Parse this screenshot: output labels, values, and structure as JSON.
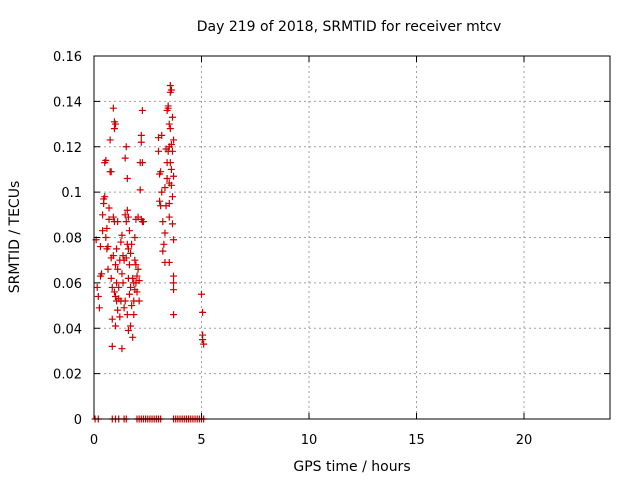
{
  "chart_data": {
    "type": "scatter",
    "title": "Day 219 of 2018, SRMTID for receiver mtcv",
    "xlabel": "GPS time / hours",
    "ylabel": "SRMTID / TECUs",
    "xlim": [
      0,
      24
    ],
    "ylim": [
      0,
      0.16
    ],
    "x_ticks": [
      0,
      5,
      10,
      15,
      20
    ],
    "x_tick_labels": [
      "0",
      "5",
      "10",
      "15",
      "20"
    ],
    "y_ticks": [
      0,
      0.02,
      0.04,
      0.06,
      0.08,
      0.1,
      0.12,
      0.14,
      0.16
    ],
    "y_tick_labels": [
      "0",
      "0.02",
      "0.04",
      "0.06",
      "0.08",
      "0.1",
      "0.12",
      "0.14",
      "0.16"
    ],
    "grid": true,
    "marker": "plus",
    "color": "#cc0000",
    "points": [
      [
        0.05,
        0.0
      ],
      [
        0.2,
        0.0
      ],
      [
        0.85,
        0.0
      ],
      [
        1.0,
        0.0
      ],
      [
        1.15,
        0.0
      ],
      [
        1.4,
        0.0
      ],
      [
        1.5,
        0.0
      ],
      [
        2.0,
        0.0
      ],
      [
        2.1,
        0.0
      ],
      [
        2.2,
        0.0
      ],
      [
        2.3,
        0.0
      ],
      [
        2.4,
        0.0
      ],
      [
        2.5,
        0.0
      ],
      [
        2.6,
        0.0
      ],
      [
        2.7,
        0.0
      ],
      [
        2.8,
        0.0
      ],
      [
        2.9,
        0.0
      ],
      [
        3.0,
        0.0
      ],
      [
        3.1,
        0.0
      ],
      [
        3.7,
        0.0
      ],
      [
        3.8,
        0.0
      ],
      [
        3.9,
        0.0
      ],
      [
        4.0,
        0.0
      ],
      [
        4.1,
        0.0
      ],
      [
        4.2,
        0.0
      ],
      [
        4.3,
        0.0
      ],
      [
        4.4,
        0.0
      ],
      [
        4.5,
        0.0
      ],
      [
        4.6,
        0.0
      ],
      [
        4.7,
        0.0
      ],
      [
        4.8,
        0.0
      ],
      [
        4.9,
        0.0
      ],
      [
        5.0,
        0.0
      ],
      [
        5.1,
        0.0
      ],
      [
        0.1,
        0.079
      ],
      [
        0.15,
        0.058
      ],
      [
        0.2,
        0.054
      ],
      [
        0.25,
        0.049
      ],
      [
        0.3,
        0.063
      ],
      [
        0.3,
        0.076
      ],
      [
        0.35,
        0.064
      ],
      [
        0.4,
        0.09
      ],
      [
        0.4,
        0.083
      ],
      [
        0.45,
        0.095
      ],
      [
        0.45,
        0.097
      ],
      [
        0.5,
        0.098
      ],
      [
        0.5,
        0.113
      ],
      [
        0.55,
        0.114
      ],
      [
        0.55,
        0.08
      ],
      [
        0.6,
        0.084
      ],
      [
        0.6,
        0.075
      ],
      [
        0.65,
        0.076
      ],
      [
        0.65,
        0.066
      ],
      [
        0.7,
        0.088
      ],
      [
        0.7,
        0.093
      ],
      [
        0.75,
        0.123
      ],
      [
        0.75,
        0.109
      ],
      [
        0.8,
        0.109
      ],
      [
        0.8,
        0.071
      ],
      [
        0.8,
        0.062
      ],
      [
        0.85,
        0.058
      ],
      [
        0.85,
        0.044
      ],
      [
        0.85,
        0.032
      ],
      [
        0.9,
        0.137
      ],
      [
        0.9,
        0.089
      ],
      [
        0.9,
        0.072
      ],
      [
        0.95,
        0.131
      ],
      [
        0.95,
        0.128
      ],
      [
        0.95,
        0.087
      ],
      [
        0.95,
        0.056
      ],
      [
        1.0,
        0.13
      ],
      [
        1.0,
        0.068
      ],
      [
        1.0,
        0.054
      ],
      [
        1.0,
        0.041
      ],
      [
        1.05,
        0.075
      ],
      [
        1.05,
        0.06
      ],
      [
        1.05,
        0.052
      ],
      [
        1.1,
        0.087
      ],
      [
        1.1,
        0.066
      ],
      [
        1.1,
        0.048
      ],
      [
        1.15,
        0.058
      ],
      [
        1.15,
        0.053
      ],
      [
        1.2,
        0.07
      ],
      [
        1.2,
        0.045
      ],
      [
        1.25,
        0.078
      ],
      [
        1.25,
        0.052
      ],
      [
        1.3,
        0.081
      ],
      [
        1.3,
        0.064
      ],
      [
        1.3,
        0.031
      ],
      [
        1.35,
        0.072
      ],
      [
        1.35,
        0.06
      ],
      [
        1.4,
        0.07
      ],
      [
        1.4,
        0.049
      ],
      [
        1.45,
        0.115
      ],
      [
        1.45,
        0.09
      ],
      [
        1.45,
        0.052
      ],
      [
        1.5,
        0.12
      ],
      [
        1.5,
        0.087
      ],
      [
        1.5,
        0.071
      ],
      [
        1.55,
        0.106
      ],
      [
        1.55,
        0.092
      ],
      [
        1.55,
        0.077
      ],
      [
        1.55,
        0.046
      ],
      [
        1.6,
        0.089
      ],
      [
        1.6,
        0.075
      ],
      [
        1.6,
        0.062
      ],
      [
        1.6,
        0.039
      ],
      [
        1.65,
        0.083
      ],
      [
        1.65,
        0.068
      ],
      [
        1.65,
        0.055
      ],
      [
        1.7,
        0.073
      ],
      [
        1.7,
        0.058
      ],
      [
        1.7,
        0.041
      ],
      [
        1.75,
        0.077
      ],
      [
        1.75,
        0.05
      ],
      [
        1.8,
        0.062
      ],
      [
        1.8,
        0.036
      ],
      [
        1.85,
        0.06
      ],
      [
        1.85,
        0.052
      ],
      [
        1.85,
        0.046
      ],
      [
        1.9,
        0.08
      ],
      [
        1.9,
        0.07
      ],
      [
        1.9,
        0.057
      ],
      [
        1.95,
        0.088
      ],
      [
        1.95,
        0.068
      ],
      [
        1.95,
        0.06
      ],
      [
        2.0,
        0.063
      ],
      [
        2.0,
        0.056
      ],
      [
        2.05,
        0.089
      ],
      [
        2.05,
        0.066
      ],
      [
        2.1,
        0.061
      ],
      [
        2.1,
        0.052
      ],
      [
        2.15,
        0.113
      ],
      [
        2.15,
        0.101
      ],
      [
        2.2,
        0.125
      ],
      [
        2.2,
        0.122
      ],
      [
        2.2,
        0.088
      ],
      [
        2.25,
        0.136
      ],
      [
        2.25,
        0.113
      ],
      [
        2.25,
        0.087
      ],
      [
        2.3,
        0.087
      ],
      [
        3.0,
        0.124
      ],
      [
        3.0,
        0.118
      ],
      [
        3.05,
        0.108
      ],
      [
        3.05,
        0.096
      ],
      [
        3.1,
        0.109
      ],
      [
        3.1,
        0.094
      ],
      [
        3.15,
        0.125
      ],
      [
        3.15,
        0.1
      ],
      [
        3.2,
        0.087
      ],
      [
        3.2,
        0.074
      ],
      [
        3.25,
        0.077
      ],
      [
        3.3,
        0.102
      ],
      [
        3.3,
        0.082
      ],
      [
        3.3,
        0.069
      ],
      [
        3.35,
        0.119
      ],
      [
        3.35,
        0.094
      ],
      [
        3.4,
        0.136
      ],
      [
        3.4,
        0.113
      ],
      [
        3.4,
        0.106
      ],
      [
        3.45,
        0.137
      ],
      [
        3.45,
        0.138
      ],
      [
        3.45,
        0.118
      ],
      [
        3.5,
        0.13
      ],
      [
        3.5,
        0.12
      ],
      [
        3.5,
        0.104
      ],
      [
        3.5,
        0.095
      ],
      [
        3.5,
        0.089
      ],
      [
        3.5,
        0.069
      ],
      [
        3.55,
        0.147
      ],
      [
        3.55,
        0.144
      ],
      [
        3.55,
        0.128
      ],
      [
        3.55,
        0.113
      ],
      [
        3.6,
        0.145
      ],
      [
        3.6,
        0.121
      ],
      [
        3.6,
        0.11
      ],
      [
        3.6,
        0.103
      ],
      [
        3.65,
        0.133
      ],
      [
        3.65,
        0.118
      ],
      [
        3.65,
        0.098
      ],
      [
        3.65,
        0.086
      ],
      [
        3.7,
        0.123
      ],
      [
        3.7,
        0.107
      ],
      [
        3.7,
        0.079
      ],
      [
        3.7,
        0.063
      ],
      [
        3.7,
        0.06
      ],
      [
        3.7,
        0.057
      ],
      [
        3.7,
        0.046
      ],
      [
        5.0,
        0.055
      ],
      [
        5.05,
        0.047
      ],
      [
        5.05,
        0.037
      ],
      [
        5.05,
        0.035
      ],
      [
        5.1,
        0.033
      ]
    ]
  }
}
